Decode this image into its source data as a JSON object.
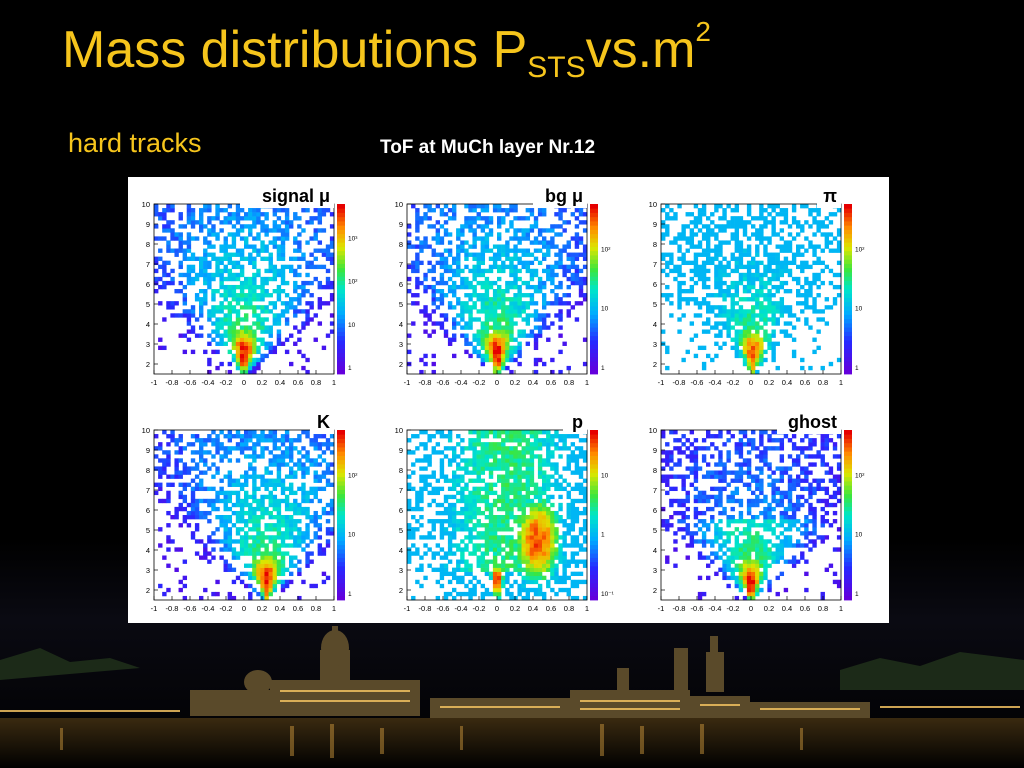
{
  "slide": {
    "title": {
      "main": "Mass distributions P",
      "sub": "STS",
      "rest": "vs.m",
      "sup": "2"
    },
    "subtitle": "hard tracks",
    "caption": "ToF at MuCh layer Nr.12"
  },
  "colors": {
    "title": "#f6c51c",
    "background": "#000000",
    "panel_bg": "#ffffff"
  },
  "chart_data": [
    {
      "type": "heatmap",
      "title": "signal μ",
      "x_ticks": [
        "-1",
        "-0.8",
        "-0.6",
        "-0.4",
        "-0.2",
        "0",
        "0.2",
        "0.4",
        "0.6",
        "0.8",
        "1"
      ],
      "y_ticks": [
        "2",
        "3",
        "4",
        "5",
        "6",
        "7",
        "8",
        "9",
        "10"
      ],
      "xlim": [
        -1,
        1
      ],
      "ylim": [
        1.5,
        10
      ],
      "colorbar_ticks": [
        "1",
        "10",
        "10²",
        "10³"
      ],
      "colorbar_scale": "log",
      "shape": "v-cone",
      "apex_x": 0.0,
      "peak_momentum": 2.5
    },
    {
      "type": "heatmap",
      "title": "bg μ",
      "x_ticks": [
        "-1",
        "-0.8",
        "-0.6",
        "-0.4",
        "-0.2",
        "0",
        "0.2",
        "0.4",
        "0.6",
        "0.8",
        "1"
      ],
      "y_ticks": [
        "2",
        "3",
        "4",
        "5",
        "6",
        "7",
        "8",
        "9",
        "10"
      ],
      "xlim": [
        -1,
        1
      ],
      "ylim": [
        1.5,
        10
      ],
      "colorbar_ticks": [
        "1",
        "10",
        "10²"
      ],
      "colorbar_scale": "log",
      "shape": "v-cone",
      "apex_x": 0.0,
      "peak_momentum": 2.5
    },
    {
      "type": "heatmap",
      "title": "π",
      "x_ticks": [
        "-1",
        "-0.8",
        "-0.6",
        "-0.4",
        "-0.2",
        "0",
        "0.2",
        "0.4",
        "0.6",
        "0.8",
        "1"
      ],
      "y_ticks": [
        "2",
        "3",
        "4",
        "5",
        "6",
        "7",
        "8",
        "9",
        "10"
      ],
      "xlim": [
        -1,
        1
      ],
      "ylim": [
        1.5,
        10
      ],
      "colorbar_ticks": [
        "1",
        "10",
        "10²"
      ],
      "colorbar_scale": "log",
      "shape": "v-cone",
      "apex_x": 0.02,
      "peak_momentum": 2.5
    },
    {
      "type": "heatmap",
      "title": "K",
      "x_ticks": [
        "-1",
        "-0.8",
        "-0.6",
        "-0.4",
        "-0.2",
        "0",
        "0.2",
        "0.4",
        "0.6",
        "0.8",
        "1"
      ],
      "y_ticks": [
        "2",
        "3",
        "4",
        "5",
        "6",
        "7",
        "8",
        "9",
        "10"
      ],
      "xlim": [
        -1,
        1
      ],
      "ylim": [
        1.5,
        10
      ],
      "colorbar_ticks": [
        "1",
        "10",
        "10²"
      ],
      "colorbar_scale": "log",
      "shape": "v-cone",
      "apex_x": 0.25,
      "peak_momentum": 2.5
    },
    {
      "type": "heatmap",
      "title": "p",
      "x_ticks": [
        "-1",
        "-0.8",
        "-0.6",
        "-0.4",
        "-0.2",
        "0",
        "0.2",
        "0.4",
        "0.6",
        "0.8",
        "1"
      ],
      "y_ticks": [
        "2",
        "3",
        "4",
        "5",
        "6",
        "7",
        "8",
        "9",
        "10"
      ],
      "xlim": [
        -1,
        1
      ],
      "ylim": [
        1.5,
        10
      ],
      "colorbar_ticks": [
        "10⁻¹",
        "1",
        "10"
      ],
      "colorbar_scale": "log",
      "shape": "two-cluster",
      "apex_x": 0.0,
      "second_cluster_x": 0.45,
      "peak_momentum": 2.5
    },
    {
      "type": "heatmap",
      "title": "ghost",
      "x_ticks": [
        "-1",
        "-0.8",
        "-0.6",
        "-0.4",
        "-0.2",
        "0",
        "0.2",
        "0.4",
        "0.6",
        "0.8",
        "1"
      ],
      "y_ticks": [
        "2",
        "3",
        "4",
        "5",
        "6",
        "7",
        "8",
        "9",
        "10"
      ],
      "xlim": [
        -1,
        1
      ],
      "ylim": [
        1.5,
        10
      ],
      "colorbar_ticks": [
        "1",
        "10",
        "10²"
      ],
      "colorbar_scale": "log",
      "shape": "v-cone",
      "apex_x": 0.0,
      "peak_momentum": 2.3
    }
  ]
}
